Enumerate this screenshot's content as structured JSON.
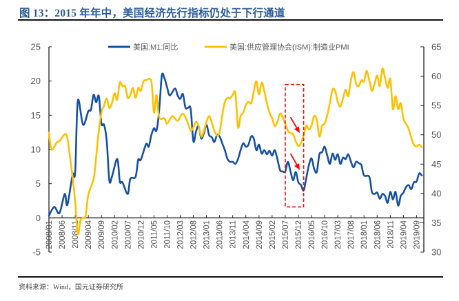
{
  "figure": {
    "title": "图 13：2015 年年中，美国经济先行指标仍处于下行通道",
    "source": "资料来源：Wind，国元证券研究所"
  },
  "colors": {
    "title": "#2B5A9B",
    "m1": "#1550A3",
    "pmi": "#FFC000",
    "annotation": "#FF0000",
    "axis": "#222222",
    "tick_text": "#595959"
  },
  "chart_data": {
    "type": "line",
    "title": "",
    "xlabel": "",
    "ylabel": "",
    "y2label": "",
    "grid": false,
    "x_ticks": [
      "2008/01",
      "2008/06",
      "2008/11",
      "2009/04",
      "2009/09",
      "2010/02",
      "2010/07",
      "2010/12",
      "2011/05",
      "2011/10",
      "2012/03",
      "2012/08",
      "2013/01",
      "2013/06",
      "2013/11",
      "2014/04",
      "2014/09",
      "2015/02",
      "2015/07",
      "2015/12",
      "2016/05",
      "2016/10",
      "2017/03",
      "2017/08",
      "2018/01",
      "2018/06",
      "2018/11",
      "2019/04",
      "2019/09"
    ],
    "y_left": {
      "range": [
        -5,
        25
      ],
      "ticks": [
        25,
        20,
        15,
        10,
        5,
        0,
        -5
      ]
    },
    "y_right": {
      "range": [
        30,
        65
      ],
      "ticks": [
        65,
        60,
        55,
        50,
        45,
        40,
        35,
        30
      ]
    },
    "legend": {
      "position": "top",
      "entries": [
        {
          "label": "美国:M1:同比",
          "color": "#1550A3"
        },
        {
          "label": "美国:供应管理协会(ISM):制造业PMI",
          "color": "#FFC000"
        }
      ]
    },
    "series": [
      {
        "name": "美国:M1:同比",
        "axis": "left",
        "color": "#1550A3",
        "points": [
          [
            "2008/01",
            0.3
          ],
          [
            "2008/03",
            1.6
          ],
          [
            "2008/05",
            0.7
          ],
          [
            "2008/07",
            3.5
          ],
          [
            "2008/08",
            1.9
          ],
          [
            "2008/10",
            6.3
          ],
          [
            "2008/11",
            6.7
          ],
          [
            "2008/12",
            17.1
          ],
          [
            "2009/02",
            13.6
          ],
          [
            "2009/04",
            15.6
          ],
          [
            "2009/05",
            15.8
          ],
          [
            "2009/06",
            18.0
          ],
          [
            "2009/07",
            16.9
          ],
          [
            "2009/08",
            17.8
          ],
          [
            "2009/09",
            13.8
          ],
          [
            "2009/10",
            13.6
          ],
          [
            "2009/11",
            11.3
          ],
          [
            "2009/12",
            5.5
          ],
          [
            "2010/01",
            6.0
          ],
          [
            "2010/03",
            8.6
          ],
          [
            "2010/04",
            5.3
          ],
          [
            "2010/05",
            5.2
          ],
          [
            "2010/07",
            3.5
          ],
          [
            "2010/08",
            5.7
          ],
          [
            "2010/10",
            6.0
          ],
          [
            "2010/11",
            8.5
          ],
          [
            "2010/12",
            8.5
          ],
          [
            "2011/02",
            10.8
          ],
          [
            "2011/03",
            10.4
          ],
          [
            "2011/04",
            12.1
          ],
          [
            "2011/05",
            13.1
          ],
          [
            "2011/06",
            12.8
          ],
          [
            "2011/07",
            15.8
          ],
          [
            "2011/08",
            20.8
          ],
          [
            "2011/09",
            20.4
          ],
          [
            "2011/10",
            19.1
          ],
          [
            "2011/11",
            17.9
          ],
          [
            "2012/01",
            18.9
          ],
          [
            "2012/02",
            17.9
          ],
          [
            "2012/03",
            17.4
          ],
          [
            "2012/04",
            18.1
          ],
          [
            "2012/05",
            16.1
          ],
          [
            "2012/06",
            16.1
          ],
          [
            "2012/07",
            15.9
          ],
          [
            "2012/08",
            11.2
          ],
          [
            "2012/09",
            12.6
          ],
          [
            "2012/10",
            13.4
          ],
          [
            "2012/11",
            11.6
          ],
          [
            "2012/12",
            12.4
          ],
          [
            "2013/01",
            13.6
          ],
          [
            "2013/02",
            12.1
          ],
          [
            "2013/03",
            11.8
          ],
          [
            "2013/04",
            11.1
          ],
          [
            "2013/05",
            12.1
          ],
          [
            "2013/06",
            11.9
          ],
          [
            "2013/07",
            10.9
          ],
          [
            "2013/08",
            9.9
          ],
          [
            "2013/09",
            8.6
          ],
          [
            "2013/10",
            8.2
          ],
          [
            "2013/11",
            8.2
          ],
          [
            "2013/12",
            7.9
          ],
          [
            "2014/01",
            8.6
          ],
          [
            "2014/02",
            9.9
          ],
          [
            "2014/03",
            10.9
          ],
          [
            "2014/04",
            10.4
          ],
          [
            "2014/05",
            10.7
          ],
          [
            "2014/06",
            11.9
          ],
          [
            "2014/07",
            11.6
          ],
          [
            "2014/08",
            9.9
          ],
          [
            "2014/09",
            10.7
          ],
          [
            "2014/10",
            9.4
          ],
          [
            "2014/11",
            9.9
          ],
          [
            "2014/12",
            9.3
          ],
          [
            "2015/01",
            9.8
          ],
          [
            "2015/02",
            9.1
          ],
          [
            "2015/03",
            9.9
          ],
          [
            "2015/04",
            8.6
          ],
          [
            "2015/05",
            7.0
          ],
          [
            "2015/06",
            6.8
          ],
          [
            "2015/07",
            6.8
          ],
          [
            "2015/08",
            8.2
          ],
          [
            "2015/09",
            6.8
          ],
          [
            "2015/10",
            5.5
          ],
          [
            "2015/11",
            6.7
          ],
          [
            "2015/12",
            5.2
          ],
          [
            "2016/01",
            4.8
          ],
          [
            "2016/02",
            4.0
          ],
          [
            "2016/03",
            5.8
          ],
          [
            "2016/04",
            7.7
          ],
          [
            "2016/05",
            8.7
          ],
          [
            "2016/06",
            7.2
          ],
          [
            "2016/07",
            6.7
          ],
          [
            "2016/08",
            9.3
          ],
          [
            "2016/09",
            9.6
          ],
          [
            "2016/10",
            10.4
          ],
          [
            "2016/11",
            9.1
          ],
          [
            "2016/12",
            7.9
          ],
          [
            "2017/01",
            9.4
          ],
          [
            "2017/02",
            8.5
          ],
          [
            "2017/03",
            9.3
          ],
          [
            "2017/04",
            7.9
          ],
          [
            "2017/05",
            8.8
          ],
          [
            "2017/06",
            8.6
          ],
          [
            "2017/07",
            9.3
          ],
          [
            "2017/08",
            8.2
          ],
          [
            "2017/09",
            7.4
          ],
          [
            "2017/10",
            8.2
          ],
          [
            "2017/11",
            8.0
          ],
          [
            "2017/12",
            7.7
          ],
          [
            "2018/01",
            6.2
          ],
          [
            "2018/03",
            6.0
          ],
          [
            "2018/04",
            3.8
          ],
          [
            "2018/05",
            3.5
          ],
          [
            "2018/06",
            3.7
          ],
          [
            "2018/07",
            2.8
          ],
          [
            "2018/08",
            3.5
          ],
          [
            "2018/09",
            3.2
          ],
          [
            "2018/10",
            2.2
          ],
          [
            "2018/11",
            3.8
          ],
          [
            "2018/12",
            2.7
          ],
          [
            "2019/01",
            3.8
          ],
          [
            "2019/02",
            1.8
          ],
          [
            "2019/03",
            3.2
          ],
          [
            "2019/04",
            3.7
          ],
          [
            "2019/05",
            4.5
          ],
          [
            "2019/06",
            4.8
          ],
          [
            "2019/07",
            4.2
          ],
          [
            "2019/08",
            5.2
          ],
          [
            "2019/09",
            5.3
          ],
          [
            "2019/10",
            6.5
          ],
          [
            "2019/11",
            6.2
          ]
        ]
      },
      {
        "name": "美国:供应管理协会(ISM):制造业PMI",
        "axis": "right",
        "color": "#FFC000",
        "points": [
          [
            "2008/01",
            50.4
          ],
          [
            "2008/02",
            47.5
          ],
          [
            "2008/04",
            48.7
          ],
          [
            "2008/05",
            48.9
          ],
          [
            "2008/07",
            50.1
          ],
          [
            "2008/08",
            49.5
          ],
          [
            "2008/09",
            46.3
          ],
          [
            "2008/10",
            42.8
          ],
          [
            "2008/11",
            38.6
          ],
          [
            "2008/12",
            33.1
          ],
          [
            "2009/01",
            35.4
          ],
          [
            "2009/02",
            35.8
          ],
          [
            "2009/03",
            36.2
          ],
          [
            "2009/04",
            39.8
          ],
          [
            "2009/06",
            42.5
          ],
          [
            "2009/07",
            46.3
          ],
          [
            "2009/08",
            50.7
          ],
          [
            "2009/09",
            53.8
          ],
          [
            "2009/10",
            55.0
          ],
          [
            "2009/11",
            56.2
          ],
          [
            "2009/12",
            54.6
          ],
          [
            "2010/01",
            55.4
          ],
          [
            "2010/02",
            57.1
          ],
          [
            "2010/03",
            56.0
          ],
          [
            "2010/04",
            58.9
          ],
          [
            "2010/05",
            58.3
          ],
          [
            "2010/06",
            58.3
          ],
          [
            "2010/07",
            56.3
          ],
          [
            "2010/08",
            56.8
          ],
          [
            "2010/09",
            58.0
          ],
          [
            "2010/10",
            56.3
          ],
          [
            "2010/11",
            58.0
          ],
          [
            "2010/12",
            57.5
          ],
          [
            "2011/01",
            59.1
          ],
          [
            "2011/02",
            59.3
          ],
          [
            "2011/04",
            59.1
          ],
          [
            "2011/05",
            53.8
          ],
          [
            "2011/06",
            56.8
          ],
          [
            "2011/07",
            53.0
          ],
          [
            "2011/09",
            52.8
          ],
          [
            "2011/10",
            51.9
          ],
          [
            "2011/12",
            53.2
          ],
          [
            "2012/02",
            52.4
          ],
          [
            "2012/04",
            53.6
          ],
          [
            "2012/06",
            51.9
          ],
          [
            "2012/07",
            50.7
          ],
          [
            "2012/08",
            51.3
          ],
          [
            "2012/09",
            52.2
          ],
          [
            "2012/10",
            51.5
          ],
          [
            "2012/11",
            49.7
          ],
          [
            "2012/12",
            50.7
          ],
          [
            "2013/01",
            52.2
          ],
          [
            "2013/02",
            53.2
          ],
          [
            "2013/03",
            52.1
          ],
          [
            "2013/04",
            50.7
          ],
          [
            "2013/05",
            49.9
          ],
          [
            "2013/06",
            50.4
          ],
          [
            "2013/07",
            53.4
          ],
          [
            "2013/08",
            55.6
          ],
          [
            "2013/09",
            56.3
          ],
          [
            "2013/10",
            56.2
          ],
          [
            "2013/11",
            56.8
          ],
          [
            "2013/12",
            57.1
          ],
          [
            "2014/01",
            51.3
          ],
          [
            "2014/02",
            53.2
          ],
          [
            "2014/03",
            53.8
          ],
          [
            "2014/04",
            55.1
          ],
          [
            "2014/05",
            55.6
          ],
          [
            "2014/06",
            55.4
          ],
          [
            "2014/07",
            57.4
          ],
          [
            "2014/08",
            59.1
          ],
          [
            "2014/09",
            56.9
          ],
          [
            "2014/10",
            58.9
          ],
          [
            "2014/11",
            57.5
          ],
          [
            "2014/12",
            55.4
          ],
          [
            "2015/01",
            53.8
          ],
          [
            "2015/02",
            52.8
          ],
          [
            "2015/03",
            51.5
          ],
          [
            "2015/04",
            52.2
          ],
          [
            "2015/05",
            53.6
          ],
          [
            "2015/06",
            53.0
          ],
          [
            "2015/07",
            51.9
          ],
          [
            "2015/08",
            50.7
          ],
          [
            "2015/09",
            50.3
          ],
          [
            "2015/10",
            50.1
          ],
          [
            "2015/11",
            48.9
          ],
          [
            "2015/12",
            48.1
          ],
          [
            "2016/01",
            48.6
          ],
          [
            "2016/02",
            49.9
          ],
          [
            "2016/03",
            51.6
          ],
          [
            "2016/04",
            50.9
          ],
          [
            "2016/05",
            51.6
          ],
          [
            "2016/06",
            53.2
          ],
          [
            "2016/07",
            52.6
          ],
          [
            "2016/08",
            49.7
          ],
          [
            "2016/09",
            51.5
          ],
          [
            "2016/10",
            51.9
          ],
          [
            "2016/11",
            53.4
          ],
          [
            "2016/12",
            55.4
          ],
          [
            "2017/01",
            57.7
          ],
          [
            "2017/02",
            57.5
          ],
          [
            "2017/03",
            55.6
          ],
          [
            "2017/04",
            54.8
          ],
          [
            "2017/05",
            56.2
          ],
          [
            "2017/06",
            57.7
          ],
          [
            "2017/07",
            56.6
          ],
          [
            "2017/08",
            59.3
          ],
          [
            "2017/09",
            60.7
          ],
          [
            "2017/10",
            58.7
          ],
          [
            "2017/11",
            58.3
          ],
          [
            "2017/12",
            59.3
          ],
          [
            "2018/01",
            59.1
          ],
          [
            "2018/02",
            60.9
          ],
          [
            "2018/03",
            59.3
          ],
          [
            "2018/04",
            57.5
          ],
          [
            "2018/05",
            58.7
          ],
          [
            "2018/06",
            60.1
          ],
          [
            "2018/07",
            58.3
          ],
          [
            "2018/08",
            61.3
          ],
          [
            "2018/09",
            59.7
          ],
          [
            "2018/10",
            58.0
          ],
          [
            "2018/11",
            59.5
          ],
          [
            "2018/12",
            54.4
          ],
          [
            "2019/01",
            56.6
          ],
          [
            "2019/02",
            54.4
          ],
          [
            "2019/03",
            55.4
          ],
          [
            "2019/04",
            52.7
          ],
          [
            "2019/05",
            51.9
          ],
          [
            "2019/06",
            51.0
          ],
          [
            "2019/07",
            49.5
          ],
          [
            "2019/08",
            48.3
          ],
          [
            "2019/09",
            48.0
          ],
          [
            "2019/10",
            48.3
          ],
          [
            "2019/11",
            47.9
          ]
        ]
      }
    ],
    "annotations": {
      "highlight_box": {
        "x_from": "2015/07",
        "x_to": "2016/02",
        "axis": "left",
        "y_from": 1.6,
        "y_to": 19.5,
        "style": "dashed",
        "color": "#FF0000"
      },
      "arrows": [
        {
          "target": "pmi",
          "axis": "right",
          "from": [
            "2015/09",
            53.0
          ],
          "to": [
            "2015/12",
            50.3
          ],
          "color": "#FF0000"
        },
        {
          "target": "m1",
          "axis": "left",
          "from": [
            "2015/09",
            9.4
          ],
          "to": [
            "2015/12",
            7.0
          ],
          "color": "#FF0000"
        }
      ]
    }
  }
}
